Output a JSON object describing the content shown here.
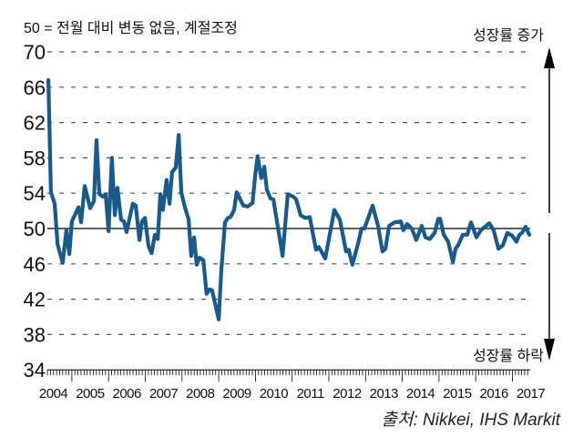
{
  "subtitle": "50 = 전월 대비 변동 없음, 계절조정",
  "annotations": {
    "up": "성장률 증가",
    "down": "성장률 하락"
  },
  "source": "출처: Nikkei, IHS Markit",
  "colors": {
    "line": "#1a5a8a",
    "grid": "#555555",
    "axis": "#000000"
  },
  "chart_data": {
    "type": "line",
    "title": "",
    "xlabel": "",
    "ylabel": "",
    "ylim": [
      34,
      70
    ],
    "yticks": [
      70,
      66,
      62,
      58,
      54,
      50,
      46,
      42,
      38,
      34
    ],
    "xtick_labels": [
      "2004",
      "2005",
      "2006",
      "2007",
      "2008",
      "2009",
      "2010",
      "2011",
      "2012",
      "2013",
      "2014",
      "2015",
      "2016",
      "2017"
    ],
    "reference_line": 50,
    "grid": "horizontal dashed",
    "series": [
      {
        "x": [
          2004.36,
          2004.43,
          2004.53,
          2004.61,
          2004.75,
          2004.85,
          2004.93,
          2005.0,
          2005.18,
          2005.25,
          2005.35,
          2005.5,
          2005.6,
          2005.67,
          2005.75,
          2005.85,
          2005.92,
          2006.0,
          2006.09,
          2006.17,
          2006.24,
          2006.34,
          2006.42,
          2006.49,
          2006.66,
          2006.74,
          2006.84,
          2006.91,
          2006.99,
          2007.09,
          2007.17,
          2007.26,
          2007.34,
          2007.41,
          2007.48,
          2007.58,
          2007.66,
          2007.73,
          2007.83,
          2007.91,
          2007.98,
          2008.08,
          2008.18,
          2008.25,
          2008.33,
          2008.4,
          2008.48,
          2008.58,
          2008.67,
          2008.75,
          2008.82,
          2009.0,
          2009.07,
          2009.17,
          2009.25,
          2009.32,
          2009.42,
          2009.49,
          2009.67,
          2009.79,
          2009.92,
          2009.99,
          2010.06,
          2010.16,
          2010.24,
          2010.31,
          2010.41,
          2010.49,
          2010.74,
          2010.88,
          2011.03,
          2011.11,
          2011.23,
          2011.36,
          2011.48,
          2011.65,
          2011.73,
          2011.9,
          2012.15,
          2012.3,
          2012.47,
          2012.54,
          2012.64,
          2012.79,
          2012.89,
          2012.97,
          2013.19,
          2013.34,
          2013.46,
          2013.54,
          2013.64,
          2013.79,
          2013.96,
          2014.03,
          2014.13,
          2014.26,
          2014.38,
          2014.53,
          2014.63,
          2014.75,
          2014.88,
          2014.98,
          2015.03,
          2015.13,
          2015.25,
          2015.38,
          2015.45,
          2015.52,
          2015.65,
          2015.77,
          2015.87,
          2016.02,
          2016.14,
          2016.37,
          2016.49,
          2016.62,
          2016.74,
          2016.86,
          2016.99,
          2017.11,
          2017.19,
          2017.26,
          2017.36,
          2017.46
        ],
        "values": [
          66.8,
          54.1,
          52.8,
          48.2,
          46.1,
          49.8,
          47.1,
          50.8,
          52.4,
          50.7,
          54.8,
          52.3,
          53.1,
          60.0,
          53.9,
          53.6,
          53.9,
          49.7,
          58.0,
          51.5,
          54.6,
          51.0,
          50.8,
          49.6,
          52.8,
          52.6,
          48.7,
          50.8,
          51.2,
          48.0,
          47.2,
          49.3,
          48.8,
          53.9,
          52.1,
          55.5,
          52.8,
          56.4,
          56.9,
          60.6,
          54.1,
          52.4,
          51.0,
          46.9,
          49.0,
          45.9,
          46.7,
          46.4,
          42.6,
          43.1,
          43.0,
          39.7,
          45.2,
          50.7,
          51.2,
          51.3,
          52.1,
          54.1,
          52.6,
          52.5,
          52.9,
          55.9,
          58.2,
          55.7,
          57.0,
          54.4,
          53.4,
          53.3,
          46.9,
          53.9,
          53.6,
          53.3,
          51.5,
          51.2,
          51.3,
          47.6,
          47.9,
          46.6,
          52.1,
          51.0,
          47.4,
          47.6,
          45.9,
          48.2,
          50.0,
          50.0,
          52.6,
          50.3,
          47.4,
          47.7,
          50.3,
          50.7,
          50.8,
          49.8,
          50.5,
          50.0,
          48.7,
          50.3,
          49.0,
          48.8,
          49.5,
          51.1,
          51.1,
          49.3,
          48.5,
          46.2,
          47.7,
          48.1,
          49.3,
          49.3,
          50.7,
          49.0,
          49.8,
          50.6,
          49.8,
          47.7,
          48.1,
          49.5,
          49.2,
          48.5,
          49.3,
          49.5,
          50.2,
          49.3
        ]
      }
    ]
  }
}
